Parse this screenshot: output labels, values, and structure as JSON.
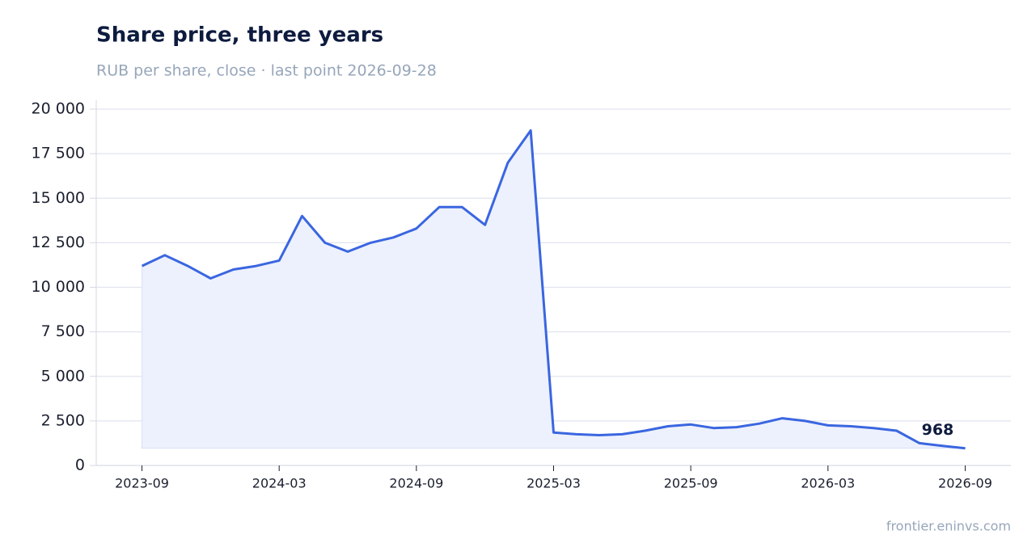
{
  "chart_data": {
    "type": "line",
    "title": "Share price, three years",
    "subtitle": "RUB per share, close · last point 2026-09-28",
    "source": "frontier.eninvs.com",
    "x": [
      "2023-09",
      "2023-10",
      "2023-11",
      "2023-12",
      "2024-01",
      "2024-02",
      "2024-03",
      "2024-04",
      "2024-05",
      "2024-06",
      "2024-07",
      "2024-08",
      "2024-09",
      "2024-10",
      "2024-11",
      "2024-12",
      "2025-01",
      "2025-02",
      "2025-03",
      "2025-04",
      "2025-05",
      "2025-06",
      "2025-07",
      "2025-08",
      "2025-09",
      "2025-10",
      "2025-11",
      "2025-12",
      "2026-01",
      "2026-02",
      "2026-03",
      "2026-04",
      "2026-05",
      "2026-06",
      "2026-07",
      "2026-08",
      "2026-09"
    ],
    "values": [
      11200,
      11800,
      11200,
      10500,
      11000,
      11200,
      11500,
      14000,
      12500,
      12000,
      12500,
      12800,
      13300,
      14500,
      14500,
      13500,
      17000,
      18800,
      1850,
      1750,
      1700,
      1750,
      1950,
      2200,
      2300,
      2100,
      2150,
      2350,
      2650,
      2500,
      2250,
      2200,
      2100,
      1950,
      1250,
      1100,
      968
    ],
    "color": "#3a66e0",
    "fill_color": "#edf1fd",
    "xlim": [
      "2023-07",
      "2026-11"
    ],
    "xticks": [
      "2023-09",
      "2024-03",
      "2024-09",
      "2025-03",
      "2025-09",
      "2026-03",
      "2026-09"
    ],
    "ylim": [
      0,
      20500
    ],
    "yticks": [
      0,
      {
        "value": 2500,
        "label": "2 500"
      },
      {
        "value": 5000,
        "label": "5 000"
      },
      {
        "value": 7500,
        "label": "7 500"
      },
      {
        "value": 10000,
        "label": "10 000"
      },
      {
        "value": 12500,
        "label": "12 500"
      },
      {
        "value": 15000,
        "label": "15 000"
      },
      {
        "value": 17500,
        "label": "17 500"
      },
      {
        "value": 20000,
        "label": "20 000"
      }
    ],
    "grid": true
  }
}
